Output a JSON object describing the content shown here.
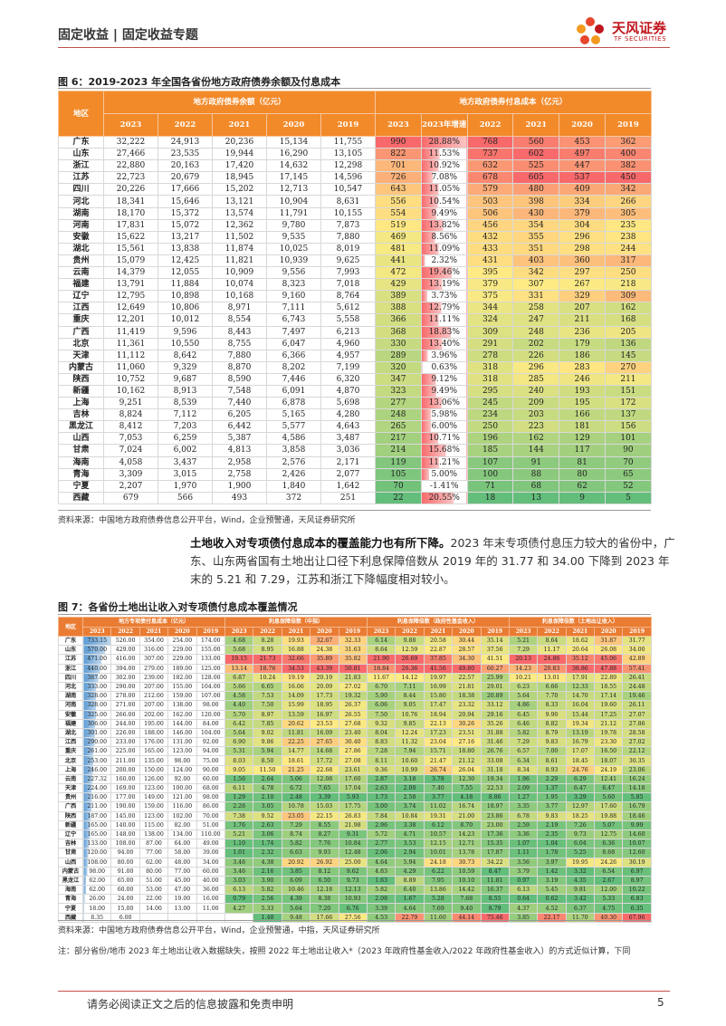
{
  "header": {
    "left": "固定收益 | 固定收益专题",
    "logo": "天风证券",
    "logo_en": "TF SECURITIES"
  },
  "figure6": {
    "caption": "图 6：2019-2023 年全国各省份地方政府债券余额及付息成本",
    "region_header": "地区",
    "groups": [
      "地方政府债券余额（亿元）",
      "地方政府债券付息成本（亿元）"
    ],
    "balance_years": [
      "2023",
      "2022",
      "2021",
      "2020",
      "2019"
    ],
    "interest_years": [
      "2023",
      "2023年增速",
      "2022",
      "2021",
      "2020",
      "2019"
    ],
    "rows": [
      [
        "广东",
        "32,222",
        "24,913",
        "20,236",
        "15,134",
        "11,755",
        "990",
        "28.88%",
        "768",
        "560",
        "453",
        "362"
      ],
      [
        "山东",
        "27,466",
        "23,535",
        "19,944",
        "16,290",
        "13,105",
        "822",
        "11.53%",
        "737",
        "602",
        "497",
        "400"
      ],
      [
        "浙江",
        "22,880",
        "20,163",
        "17,420",
        "14,632",
        "12,298",
        "701",
        "10.92%",
        "632",
        "525",
        "447",
        "382"
      ],
      [
        "江苏",
        "22,723",
        "20,679",
        "18,945",
        "17,145",
        "14,596",
        "726",
        "7.08%",
        "678",
        "605",
        "537",
        "450"
      ],
      [
        "四川",
        "20,226",
        "17,666",
        "15,202",
        "12,713",
        "10,547",
        "643",
        "11.05%",
        "579",
        "480",
        "409",
        "342"
      ],
      [
        "河北",
        "18,341",
        "15,646",
        "13,121",
        "10,904",
        "8,631",
        "556",
        "10.54%",
        "503",
        "398",
        "334",
        "266"
      ],
      [
        "湖南",
        "18,170",
        "15,372",
        "13,574",
        "11,791",
        "10,155",
        "554",
        "9.49%",
        "506",
        "430",
        "379",
        "305"
      ],
      [
        "河南",
        "17,831",
        "15,072",
        "12,362",
        "9,780",
        "7,873",
        "519",
        "13.82%",
        "456",
        "354",
        "304",
        "235"
      ],
      [
        "安徽",
        "15,622",
        "13,217",
        "11,502",
        "9,535",
        "7,880",
        "469",
        "8.56%",
        "432",
        "355",
        "296",
        "238"
      ],
      [
        "湖北",
        "15,561",
        "13,838",
        "11,874",
        "10,025",
        "8,019",
        "481",
        "11.09%",
        "433",
        "351",
        "298",
        "244"
      ],
      [
        "贵州",
        "15,079",
        "12,425",
        "11,821",
        "10,939",
        "9,625",
        "441",
        "2.32%",
        "431",
        "403",
        "360",
        "317"
      ],
      [
        "云南",
        "14,379",
        "12,055",
        "10,909",
        "9,556",
        "7,993",
        "472",
        "19.46%",
        "395",
        "342",
        "297",
        "250"
      ],
      [
        "福建",
        "13,791",
        "11,884",
        "10,074",
        "8,323",
        "7,018",
        "429",
        "13.19%",
        "379",
        "307",
        "267",
        "218"
      ],
      [
        "辽宁",
        "12,795",
        "10,898",
        "10,168",
        "9,160",
        "8,764",
        "389",
        "3.73%",
        "375",
        "331",
        "329",
        "309"
      ],
      [
        "江西",
        "12,649",
        "10,806",
        "8,971",
        "7,111",
        "5,612",
        "388",
        "12.79%",
        "344",
        "258",
        "207",
        "162"
      ],
      [
        "重庆",
        "12,201",
        "10,012",
        "8,554",
        "6,743",
        "5,558",
        "366",
        "11.11%",
        "324",
        "247",
        "211",
        "168"
      ],
      [
        "广西",
        "11,419",
        "9,596",
        "8,443",
        "7,497",
        "6,213",
        "368",
        "18.83%",
        "309",
        "248",
        "236",
        "205"
      ],
      [
        "北京",
        "11,361",
        "10,550",
        "8,755",
        "6,047",
        "4,960",
        "330",
        "13.40%",
        "291",
        "202",
        "179",
        "136"
      ],
      [
        "天津",
        "11,112",
        "8,642",
        "7,880",
        "6,366",
        "4,957",
        "289",
        "3.96%",
        "278",
        "226",
        "186",
        "145"
      ],
      [
        "内蒙古",
        "11,060",
        "9,329",
        "8,870",
        "8,202",
        "7,199",
        "320",
        "0.63%",
        "318",
        "296",
        "283",
        "270"
      ],
      [
        "陕西",
        "10,752",
        "9,687",
        "8,590",
        "7,446",
        "6,320",
        "347",
        "9.12%",
        "318",
        "285",
        "246",
        "211"
      ],
      [
        "新疆",
        "10,162",
        "8,913",
        "7,548",
        "6,091",
        "4,870",
        "323",
        "9.49%",
        "295",
        "240",
        "193",
        "151"
      ],
      [
        "上海",
        "9,251",
        "8,539",
        "7,440",
        "6,878",
        "5,698",
        "277",
        "13.06%",
        "245",
        "209",
        "195",
        "172"
      ],
      [
        "吉林",
        "8,824",
        "7,112",
        "6,205",
        "5,165",
        "4,280",
        "248",
        "5.98%",
        "234",
        "203",
        "166",
        "137"
      ],
      [
        "黑龙江",
        "8,412",
        "7,203",
        "6,442",
        "5,577",
        "4,643",
        "265",
        "6.00%",
        "250",
        "223",
        "181",
        "156"
      ],
      [
        "山西",
        "7,053",
        "6,259",
        "5,387",
        "4,586",
        "3,487",
        "217",
        "10.71%",
        "196",
        "162",
        "129",
        "101"
      ],
      [
        "甘肃",
        "7,024",
        "6,002",
        "4,813",
        "3,858",
        "3,036",
        "214",
        "15.68%",
        "185",
        "144",
        "117",
        "90"
      ],
      [
        "海南",
        "4,058",
        "3,437",
        "2,958",
        "2,576",
        "2,171",
        "119",
        "11.21%",
        "107",
        "91",
        "81",
        "70"
      ],
      [
        "青海",
        "3,309",
        "3,015",
        "2,758",
        "2,426",
        "2,077",
        "105",
        "5.00%",
        "100",
        "88",
        "80",
        "65"
      ],
      [
        "宁夏",
        "2,207",
        "1,970",
        "1,900",
        "1,840",
        "1,642",
        "70",
        "-1.41%",
        "71",
        "68",
        "62",
        "52"
      ],
      [
        "西藏",
        "679",
        "566",
        "493",
        "372",
        "251",
        "22",
        "20.55%",
        "18",
        "13",
        "9",
        "5"
      ]
    ],
    "source": "资料来源：中国地方政府债券信息公开平台，Wind，企业预警通，天风证券研究所"
  },
  "body": {
    "lead": "土地收入对专项债付息成本的覆盖能力也有所下降。",
    "text": "2023 年末专项债付息压力较大的省份中，广东、山东两省国有土地出让口径下利息保障倍数从 2019 年的 31.77 和 34.00 下降到 2023 年末的 5.21 和 7.29，江苏和浙江下降幅度相对较小。"
  },
  "figure7": {
    "caption": "图 7：各省份土地出让收入对专项债付息成本覆盖情况",
    "region_header": "地区",
    "groups": [
      "地方专项债付息成本（亿元）",
      "利息保障倍数（中指）",
      "利息保障倍数（政府性基金收入）",
      "利息保障倍数（土地出让收入）"
    ],
    "years": [
      "2023",
      "2022",
      "2021",
      "2020",
      "2019"
    ],
    "rows": [
      [
        "广东",
        "733.15",
        "526.00",
        "354.00",
        "254.00",
        "174.00",
        "4.68",
        "8.28",
        "19.93",
        "32.67",
        "32.33",
        "6.14",
        "9.88",
        "20.58",
        "30.44",
        "35.14",
        "5.21",
        "8.64",
        "18.62",
        "31.87",
        "31.77"
      ],
      [
        "山东",
        "570.00",
        "429.00",
        "316.00",
        "229.00",
        "155.00",
        "5.68",
        "8.95",
        "16.88",
        "24.38",
        "31.63",
        "8.64",
        "12.59",
        "22.87",
        "28.57",
        "37.56",
        "7.29",
        "11.17",
        "20.64",
        "26.08",
        "34.00"
      ],
      [
        "江苏",
        "471.00",
        "416.00",
        "307.00",
        "229.00",
        "133.00",
        "19.15",
        "21.73",
        "32.66",
        "35.89",
        "35.82",
        "21.90",
        "26.69",
        "37.85",
        "34.30",
        "41.51",
        "20.13",
        "24.86",
        "35.12",
        "45.06",
        "42.89"
      ],
      [
        "浙江",
        "440.00",
        "394.00",
        "279.00",
        "189.00",
        "125.00",
        "13.14",
        "18.76",
        "34.53",
        "43.39",
        "50.81",
        "18.84",
        "26.36",
        "41.56",
        "49.80",
        "60.27",
        "14.23",
        "20.83",
        "38.86",
        "47.88",
        "57.41"
      ],
      [
        "四川",
        "387.00",
        "302.00",
        "239.00",
        "182.00",
        "128.00",
        "6.87",
        "10.24",
        "19.19",
        "20.19",
        "21.83",
        "11.67",
        "14.12",
        "19.97",
        "22.57",
        "25.99",
        "10.21",
        "13.01",
        "17.91",
        "22.89",
        "26.41"
      ],
      [
        "河北",
        "333.00",
        "290.00",
        "207.00",
        "155.00",
        "104.00",
        "5.66",
        "6.65",
        "16.06",
        "20.09",
        "27.02",
        "6.70",
        "7.11",
        "16.99",
        "21.81",
        "29.01",
        "6.23",
        "6.66",
        "12.33",
        "18.55",
        "24.48"
      ],
      [
        "湖南",
        "328.00",
        "278.00",
        "212.00",
        "159.00",
        "107.00",
        "4.58",
        "7.53",
        "14.09",
        "17.73",
        "19.32",
        "5.90",
        "8.44",
        "15.80",
        "18.38",
        "20.89",
        "5.64",
        "7.70",
        "14.70",
        "17.14",
        "19.46"
      ],
      [
        "河南",
        "328.00",
        "271.00",
        "207.00",
        "138.00",
        "98.00",
        "4.40",
        "7.50",
        "15.99",
        "18.95",
        "26.37",
        "6.06",
        "9.05",
        "17.47",
        "23.32",
        "33.12",
        "4.86",
        "8.33",
        "16.04",
        "19.60",
        "26.11"
      ],
      [
        "安徽",
        "325.00",
        "266.00",
        "202.00",
        "162.00",
        "120.00",
        "5.70",
        "8.97",
        "13.59",
        "16.97",
        "26.55",
        "7.50",
        "10.76",
        "18.94",
        "20.94",
        "29.16",
        "6.45",
        "9.90",
        "15.44",
        "17.25",
        "27.07"
      ],
      [
        "福建",
        "306.00",
        "244.00",
        "195.00",
        "144.00",
        "84.00",
        "6.42",
        "7.85",
        "20.62",
        "23.53",
        "27.68",
        "9.32",
        "9.85",
        "22.13",
        "30.26",
        "35.26",
        "6.46",
        "8.82",
        "19.34",
        "21.12",
        "27.86"
      ],
      [
        "湖北",
        "301.00",
        "226.00",
        "188.00",
        "146.00",
        "104.00",
        "5.64",
        "9.02",
        "11.81",
        "16.09",
        "23.40",
        "8.04",
        "12.24",
        "17.23",
        "23.51",
        "31.88",
        "5.82",
        "8.79",
        "13.19",
        "19.78",
        "28.58"
      ],
      [
        "江西",
        "290.00",
        "233.00",
        "176.00",
        "131.00",
        "92.00",
        "6.90",
        "9.86",
        "22.25",
        "27.65",
        "30.40",
        "8.83",
        "11.32",
        "23.04",
        "27.16",
        "31.46",
        "7.29",
        "9.83",
        "16.79",
        "23.30",
        "27.02"
      ],
      [
        "重庆",
        "261.00",
        "225.00",
        "165.00",
        "123.00",
        "94.00",
        "5.31",
        "5.94",
        "14.77",
        "14.68",
        "27.86",
        "7.28",
        "7.94",
        "15.71",
        "18.80",
        "26.76",
        "6.57",
        "7.00",
        "17.07",
        "16.50",
        "22.12"
      ],
      [
        "北京",
        "253.00",
        "211.00",
        "135.00",
        "98.00",
        "75.00",
        "8.03",
        "8.50",
        "18.61",
        "17.72",
        "27.08",
        "8.11",
        "10.60",
        "21.47",
        "21.12",
        "33.08",
        "6.34",
        "8.61",
        "18.45",
        "18.07",
        "30.35"
      ],
      [
        "上海",
        "246.00",
        "200.00",
        "150.00",
        "124.00",
        "90.00",
        "9.05",
        "11.50",
        "21.25",
        "22.68",
        "23.61",
        "9.36",
        "10.99",
        "26.74",
        "26.04",
        "31.18",
        "8.34",
        "8.93",
        "24.76",
        "24.19",
        "23.06"
      ],
      [
        "云南",
        "227.32",
        "160.00",
        "126.00",
        "92.00",
        "60.00",
        "1.56",
        "2.64",
        "5.06",
        "12.08",
        "17.60",
        "2.87",
        "3.18",
        "3.78",
        "12.30",
        "19.34",
        "1.96",
        "2.29",
        "6.29",
        "12.41",
        "16.24"
      ],
      [
        "天津",
        "224.00",
        "169.00",
        "123.00",
        "100.00",
        "68.00",
        "6.11",
        "4.78",
        "6.72",
        "7.65",
        "17.04",
        "2.63",
        "2.00",
        "7.40",
        "7.55",
        "22.53",
        "2.09",
        "1.37",
        "6.47",
        "6.47",
        "14.18"
      ],
      [
        "贵州",
        "216.00",
        "177.00",
        "149.00",
        "121.00",
        "98.00",
        "1.29",
        "2.10",
        "2.48",
        "3.39",
        "5.93",
        "1.73",
        "2.58",
        "3.77",
        "4.18",
        "8.86",
        "1.27",
        "1.95",
        "3.29",
        "5.60",
        "5.85"
      ],
      [
        "广西",
        "211.00",
        "190.00",
        "159.00",
        "116.00",
        "86.00",
        "2.26",
        "3.05",
        "10.78",
        "15.03",
        "17.75",
        "3.00",
        "3.74",
        "11.02",
        "16.74",
        "18.97",
        "3.35",
        "3.77",
        "12.97",
        "17.60",
        "16.79"
      ],
      [
        "陕西",
        "187.00",
        "145.00",
        "123.00",
        "102.00",
        "70.00",
        "7.38",
        "9.52",
        "23.05",
        "22.15",
        "26.83",
        "7.84",
        "10.84",
        "19.31",
        "21.00",
        "23.86",
        "6.78",
        "9.83",
        "18.25",
        "19.88",
        "18.46"
      ],
      [
        "新疆",
        "165.00",
        "140.00",
        "115.00",
        "82.00",
        "51.00",
        "1.76",
        "2.63",
        "7.29",
        "8.55",
        "21.98",
        "2.96",
        "3.38",
        "6.12",
        "8.70",
        "23.00",
        "2.59",
        "2.19",
        "7.26",
        "5.07",
        "9.99"
      ],
      [
        "辽宁",
        "165.00",
        "148.00",
        "138.00",
        "134.00",
        "110.00",
        "5.21",
        "3.06",
        "8.74",
        "8.27",
        "9.31",
        "5.72",
        "4.71",
        "10.57",
        "14.23",
        "17.36",
        "3.36",
        "2.35",
        "9.73",
        "12.75",
        "14.60"
      ],
      [
        "吉林",
        "133.00",
        "108.00",
        "87.00",
        "64.00",
        "49.00",
        "1.10",
        "1.74",
        "5.82",
        "7.76",
        "10.84",
        "2.77",
        "3.53",
        "12.15",
        "12.71",
        "15.35",
        "1.07",
        "1.04",
        "6.04",
        "6.36",
        "10.07"
      ],
      [
        "甘肃",
        "120.00",
        "94.00",
        "77.00",
        "58.00",
        "39.00",
        "1.01",
        "2.32",
        "6.63",
        "9.93",
        "12.48",
        "2.06",
        "2.94",
        "10.01",
        "13.78",
        "17.87",
        "1.11",
        "1.78",
        "5.25",
        "8.68",
        "12.60"
      ],
      [
        "山西",
        "108.00",
        "80.00",
        "62.00",
        "48.00",
        "34.00",
        "3.46",
        "4.38",
        "20.92",
        "26.92",
        "25.00",
        "4.64",
        "5.94",
        "24.18",
        "30.73",
        "34.22",
        "3.56",
        "3.97",
        "19.95",
        "24.26",
        "30.19"
      ],
      [
        "内蒙古",
        "98.00",
        "91.00",
        "80.00",
        "77.00",
        "60.00",
        "3.46",
        "2.16",
        "3.85",
        "8.12",
        "9.62",
        "4.83",
        "4.29",
        "6.22",
        "10.59",
        "8.47",
        "3.79",
        "1.42",
        "3.32",
        "6.54",
        "6.97"
      ],
      [
        "黑龙江",
        "62.00",
        "65.00",
        "51.00",
        "45.00",
        "40.00",
        "3.03",
        "3.90",
        "6.09",
        "6.50",
        "9.73",
        "1.63",
        "8.89",
        "7.95",
        "10.10",
        "11.81",
        "0.97",
        "3.19",
        "4.35",
        "2.67",
        "8.97"
      ],
      [
        "海南",
        "62.00",
        "60.00",
        "53.00",
        "47.00",
        "36.00",
        "6.13",
        "5.82",
        "10.46",
        "12.18",
        "12.13",
        "5.82",
        "6.40",
        "13.86",
        "14.42",
        "16.37",
        "6.13",
        "5.45",
        "9.81",
        "12.00",
        "10.22"
      ],
      [
        "青海",
        "26.00",
        "24.00",
        "22.00",
        "19.00",
        "16.00",
        "0.79",
        "2.56",
        "4.39",
        "8.38",
        "10.93",
        "2.08",
        "1.67",
        "5.28",
        "7.68",
        "8.55",
        "0.64",
        "0.62",
        "3.42",
        "5.33",
        "6.83"
      ],
      [
        "宁夏",
        "18.00",
        "15.00",
        "14.00",
        "13.00",
        "11.00",
        "4.27",
        "5.33",
        "5.64",
        "7.20",
        "6.76",
        "3.39",
        "4.64",
        "7.69",
        "9.40",
        "8.79",
        "4.37",
        "4.52",
        "6.37",
        "4.75",
        "6.35"
      ],
      [
        "西藏",
        "8.35",
        "6.00",
        null,
        null,
        null,
        null,
        "1.48",
        "9.48",
        "17.66",
        "27.56",
        "4.53",
        "22.79",
        "11.60",
        "44.14",
        "75.46",
        "3.85",
        "22.17",
        "11.70",
        "40.30",
        "67.96"
      ]
    ],
    "source": "资料来源：中国地方政府债券信息公开平台，Wind，企业预警通，中指，天风证券研究所",
    "note": "注：部分省份/地市 2023 年土地出让收入数据缺失，按照 2022 年土地出让收入*（2023 年政府性基金收入/2022 年政府性基金收入）的方式近似计算，下同"
  },
  "footer": {
    "disclaimer": "请务必阅读正文之后的信息披露和免责申明",
    "page": "5"
  }
}
